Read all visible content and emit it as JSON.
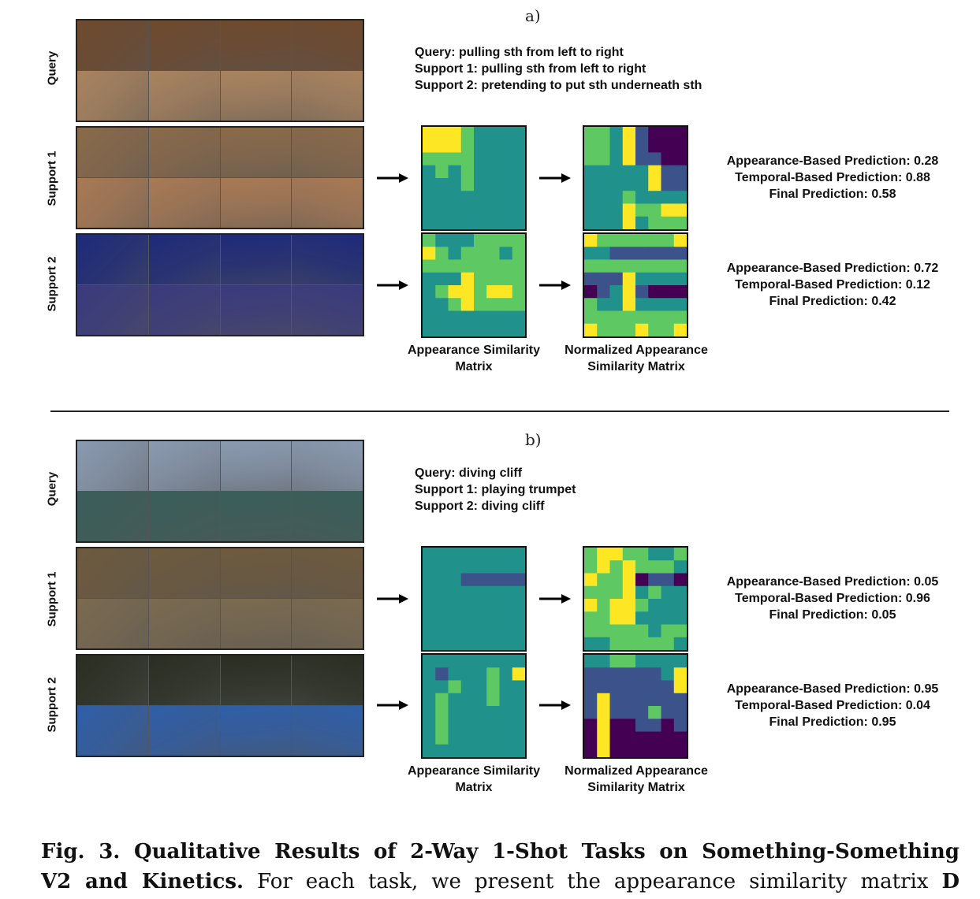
{
  "panels": [
    {
      "label": "a)",
      "rows": [
        "Query",
        "Support 1",
        "Support 2"
      ],
      "task_lines": [
        "Query: pulling sth from left to right",
        "Support 1: pulling sth from left to right",
        "Support 2: pretending to put sth underneath sth"
      ],
      "matrix_labels": {
        "appearance": [
          "Appearance Similarity",
          "Matrix"
        ],
        "normalized": [
          "Normalized Appearance",
          "Similarity Matrix"
        ]
      },
      "support1_predictions": [
        "Appearance-Based Prediction: 0.28",
        "Temporal-Based Prediction: 0.88",
        "Final Prediction: 0.58"
      ],
      "support2_predictions": [
        "Appearance-Based Prediction: 0.72",
        "Temporal-Based Prediction: 0.12",
        "Final Prediction: 0.42"
      ]
    },
    {
      "label": "b)",
      "rows": [
        "Query",
        "Support 1",
        "Support 2"
      ],
      "task_lines": [
        "Query: diving cliff",
        "Support 1: playing trumpet",
        "Support 2: diving cliff"
      ],
      "matrix_labels": {
        "appearance": [
          "Appearance Similarity",
          "Matrix"
        ],
        "normalized": [
          "Normalized Appearance",
          "Similarity Matrix"
        ]
      },
      "support1_predictions": [
        "Appearance-Based Prediction: 0.05",
        "Temporal-Based Prediction: 0.96",
        "Final Prediction: 0.05"
      ],
      "support2_predictions": [
        "Appearance-Based Prediction: 0.95",
        "Temporal-Based Prediction: 0.04",
        "Final Prediction: 0.95"
      ]
    }
  ],
  "caption": {
    "lead_line1": "Fig. 3. Qualitative Results of 2-Way 1-Shot Tasks on Something-Something",
    "lead_line2": "V2 and Kinetics.",
    "rest": " For each task, we present the appearance similarity matrix",
    "symbol": "D"
  },
  "colormap": [
    "#440154",
    "#3b528b",
    "#21918c",
    "#5ec962",
    "#fde725"
  ],
  "matrices": {
    "a_s1_app": [
      [
        4,
        4,
        4,
        3,
        2,
        2,
        2,
        2
      ],
      [
        4,
        4,
        4,
        3,
        2,
        2,
        2,
        2
      ],
      [
        3,
        3,
        3,
        3,
        2,
        2,
        2,
        2
      ],
      [
        2,
        3,
        2,
        3,
        2,
        2,
        2,
        2
      ],
      [
        2,
        2,
        2,
        3,
        2,
        2,
        2,
        2
      ],
      [
        2,
        2,
        2,
        2,
        2,
        2,
        2,
        2
      ],
      [
        2,
        2,
        2,
        2,
        2,
        2,
        2,
        2
      ],
      [
        2,
        2,
        2,
        2,
        2,
        2,
        2,
        2
      ]
    ],
    "a_s1_norm": [
      [
        3,
        3,
        2,
        4,
        1,
        0,
        0,
        0
      ],
      [
        3,
        3,
        2,
        4,
        1,
        0,
        0,
        0
      ],
      [
        3,
        3,
        2,
        4,
        1,
        1,
        0,
        0
      ],
      [
        2,
        2,
        2,
        2,
        2,
        4,
        1,
        1
      ],
      [
        2,
        2,
        2,
        2,
        2,
        4,
        1,
        1
      ],
      [
        2,
        2,
        2,
        3,
        2,
        2,
        2,
        2
      ],
      [
        2,
        2,
        2,
        4,
        3,
        3,
        4,
        4
      ],
      [
        2,
        2,
        2,
        4,
        2,
        3,
        3,
        3
      ]
    ],
    "a_s2_app": [
      [
        3,
        2,
        2,
        2,
        3,
        3,
        3,
        3
      ],
      [
        4,
        3,
        2,
        3,
        3,
        3,
        2,
        3
      ],
      [
        3,
        3,
        3,
        3,
        3,
        3,
        3,
        3
      ],
      [
        2,
        2,
        2,
        4,
        3,
        3,
        3,
        3
      ],
      [
        2,
        3,
        4,
        4,
        3,
        4,
        4,
        3
      ],
      [
        2,
        2,
        3,
        4,
        3,
        3,
        3,
        3
      ],
      [
        2,
        2,
        2,
        2,
        2,
        2,
        2,
        2
      ],
      [
        2,
        2,
        2,
        2,
        2,
        2,
        2,
        2
      ]
    ],
    "a_s2_norm": [
      [
        4,
        3,
        3,
        3,
        3,
        3,
        3,
        4
      ],
      [
        2,
        2,
        1,
        1,
        1,
        1,
        1,
        1
      ],
      [
        3,
        3,
        3,
        3,
        3,
        3,
        3,
        3
      ],
      [
        1,
        1,
        1,
        4,
        2,
        2,
        2,
        2
      ],
      [
        0,
        1,
        2,
        4,
        1,
        0,
        0,
        0
      ],
      [
        3,
        2,
        2,
        4,
        2,
        2,
        2,
        2
      ],
      [
        3,
        3,
        3,
        3,
        3,
        3,
        3,
        3
      ],
      [
        4,
        3,
        3,
        3,
        4,
        3,
        3,
        4
      ]
    ],
    "b_s1_app": [
      [
        2,
        2,
        2,
        2,
        2,
        2,
        2,
        2
      ],
      [
        2,
        2,
        2,
        2,
        2,
        2,
        2,
        2
      ],
      [
        2,
        2,
        2,
        1,
        1,
        1,
        1,
        1
      ],
      [
        2,
        2,
        2,
        2,
        2,
        2,
        2,
        2
      ],
      [
        2,
        2,
        2,
        2,
        2,
        2,
        2,
        2
      ],
      [
        2,
        2,
        2,
        2,
        2,
        2,
        2,
        2
      ],
      [
        2,
        2,
        2,
        2,
        2,
        2,
        2,
        2
      ],
      [
        2,
        2,
        2,
        2,
        2,
        2,
        2,
        2
      ]
    ],
    "b_s1_norm": [
      [
        3,
        4,
        4,
        3,
        3,
        2,
        2,
        3
      ],
      [
        3,
        4,
        3,
        4,
        3,
        3,
        3,
        2
      ],
      [
        4,
        3,
        3,
        4,
        0,
        1,
        1,
        0
      ],
      [
        3,
        3,
        3,
        4,
        2,
        3,
        2,
        2
      ],
      [
        4,
        3,
        4,
        4,
        3,
        2,
        2,
        2
      ],
      [
        3,
        3,
        4,
        4,
        2,
        2,
        2,
        2
      ],
      [
        3,
        3,
        3,
        3,
        3,
        2,
        3,
        3
      ],
      [
        2,
        2,
        3,
        3,
        3,
        3,
        3,
        2
      ]
    ],
    "b_s2_app": [
      [
        2,
        2,
        2,
        2,
        2,
        2,
        2,
        2
      ],
      [
        2,
        1,
        2,
        2,
        2,
        3,
        2,
        4
      ],
      [
        2,
        2,
        3,
        2,
        2,
        3,
        2,
        2
      ],
      [
        2,
        3,
        2,
        2,
        2,
        3,
        2,
        2
      ],
      [
        2,
        3,
        2,
        2,
        2,
        2,
        2,
        2
      ],
      [
        2,
        3,
        2,
        2,
        2,
        2,
        2,
        2
      ],
      [
        2,
        3,
        2,
        2,
        2,
        2,
        2,
        2
      ],
      [
        2,
        2,
        2,
        2,
        2,
        2,
        2,
        2
      ]
    ],
    "b_s2_norm": [
      [
        2,
        2,
        3,
        3,
        2,
        2,
        2,
        2
      ],
      [
        1,
        1,
        1,
        1,
        1,
        1,
        2,
        4
      ],
      [
        1,
        1,
        1,
        1,
        1,
        1,
        1,
        4
      ],
      [
        1,
        4,
        1,
        1,
        1,
        1,
        1,
        1
      ],
      [
        1,
        4,
        1,
        1,
        1,
        3,
        1,
        1
      ],
      [
        0,
        4,
        0,
        0,
        1,
        1,
        0,
        1
      ],
      [
        0,
        4,
        0,
        0,
        0,
        0,
        0,
        0
      ],
      [
        0,
        4,
        0,
        0,
        0,
        0,
        0,
        0
      ]
    ]
  },
  "thumbnails": {
    "a_query": [
      "#6e4a2e",
      "#a9835f"
    ],
    "a_support1": [
      "#8a6a4a",
      "#a87a55"
    ],
    "a_support2": [
      "#1e2a7a",
      "#3a3a7e"
    ],
    "b_query": [
      "#8a9ab0",
      "#3a5e5a"
    ],
    "b_support1": [
      "#6e5a3e",
      "#7a6a50"
    ],
    "b_support2": [
      "#2a2e22",
      "#2f5ea8"
    ]
  }
}
